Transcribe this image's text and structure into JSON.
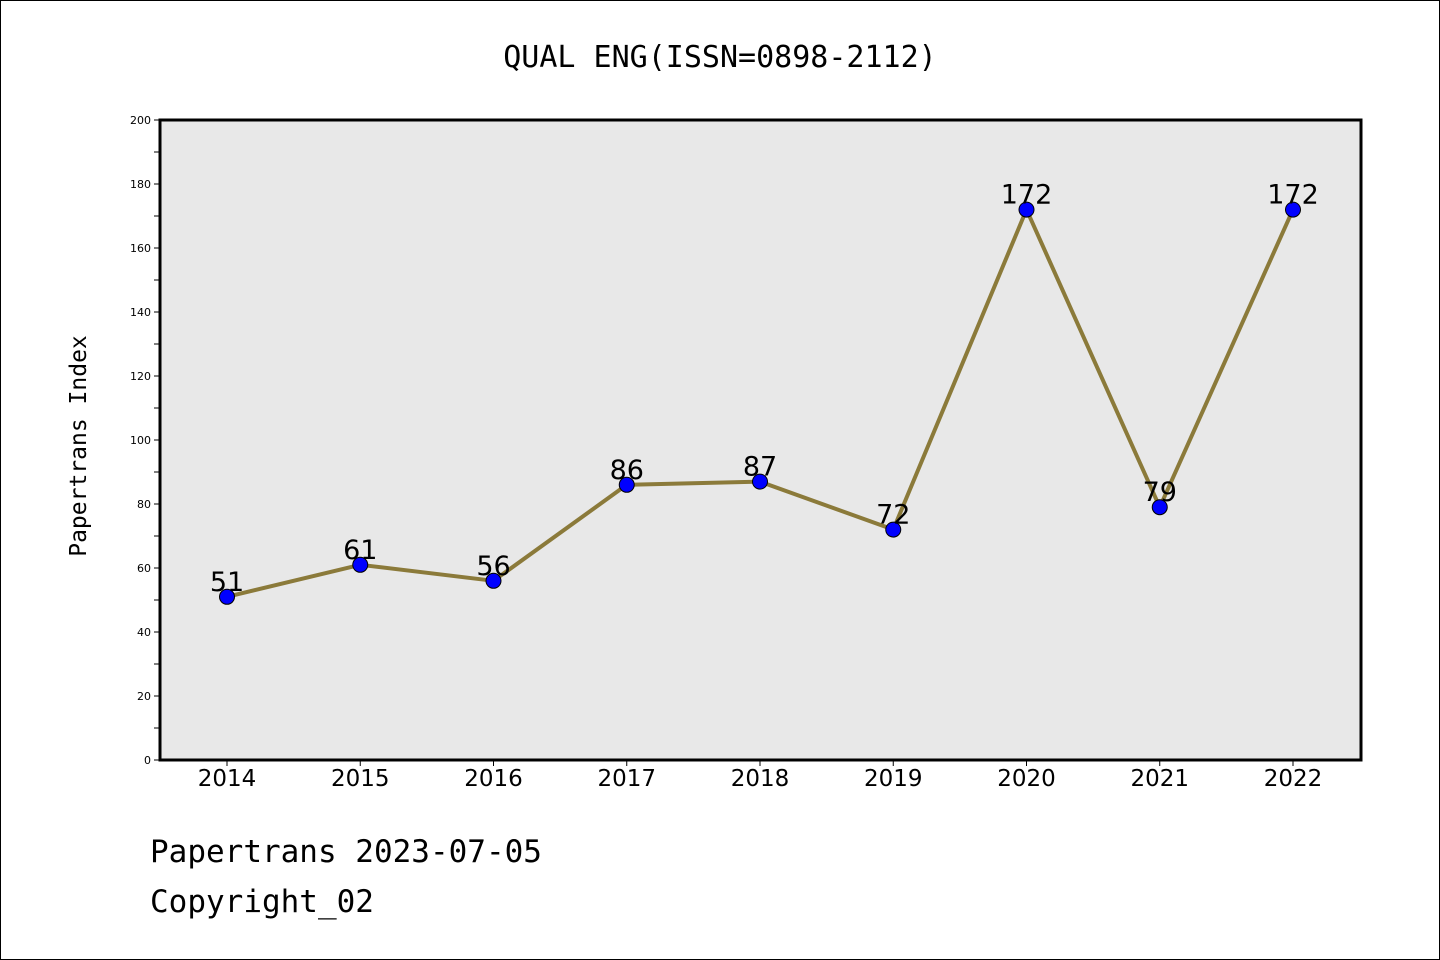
{
  "chart_data": {
    "type": "line",
    "title": "QUAL ENG(ISSN=0898-2112)",
    "xlabel": "",
    "ylabel": "Papertrans Index",
    "categories": [
      "2014",
      "2015",
      "2016",
      "2017",
      "2018",
      "2019",
      "2020",
      "2021",
      "2022"
    ],
    "series": [
      {
        "values": [
          51,
          61,
          56,
          86,
          87,
          72,
          172,
          79,
          172
        ]
      }
    ],
    "ylim": [
      0,
      200
    ],
    "yticks": [
      0,
      20,
      40,
      60,
      80,
      100,
      120,
      140,
      160,
      180,
      200
    ],
    "data_labels": [
      "51",
      "61",
      "56",
      "86",
      "87",
      "72",
      "172",
      "79",
      "172"
    ],
    "grid": false,
    "legend": "none",
    "colors": {
      "line": "#8b7a3a",
      "marker": "#0000ff",
      "plot_background": "#e8e8e8"
    }
  },
  "footer": {
    "line1": "Papertrans 2023-07-05",
    "line2": "Copyright_02"
  }
}
